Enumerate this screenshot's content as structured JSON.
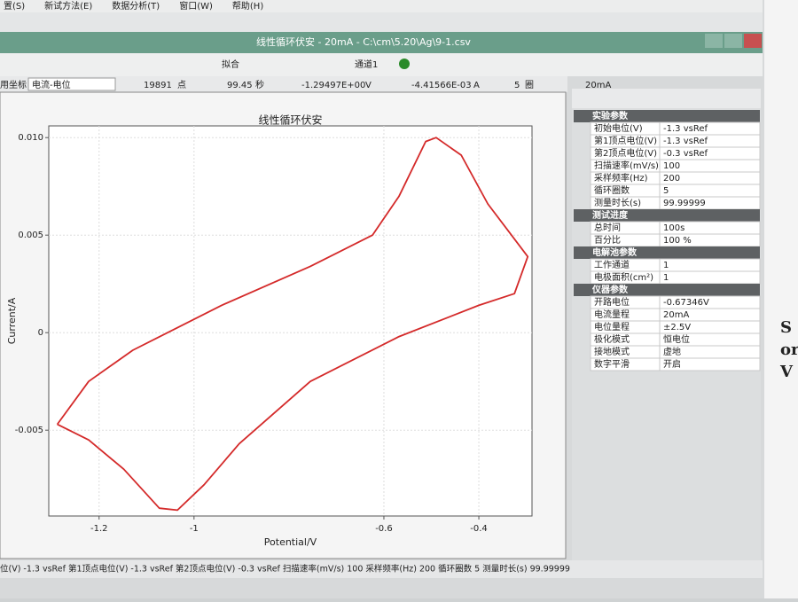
{
  "menu": [
    "置(S)",
    "新试方法(E)",
    "数据分析(T)",
    "窗口(W)",
    "帮助(H)"
  ],
  "window_title": "线性循环伏安 - 20mA - C:\\cm\\5.20\\Ag\\9-1.csv",
  "toolbar": {
    "fit": "拟合",
    "channel": "通道1"
  },
  "info_bar": {
    "coord_label": "用坐标",
    "coord_mode": "电流-电位",
    "points": "19891",
    "points_unit": "点",
    "time": "99.45",
    "time_unit": "秒",
    "potential": "-1.29497E+00",
    "potential_unit": "V",
    "current": "-4.41566E-03",
    "current_unit": "A",
    "cycles": "5",
    "cycles_unit": "圈",
    "range": "20mA"
  },
  "chart_data": {
    "type": "line",
    "title": "线性循环伏安",
    "x_label": "Potential/V",
    "y_label": "Current/A",
    "color": "#d42a2a",
    "grid": true,
    "x": [
      -1.288,
      -1.222,
      -1.129,
      -0.942,
      -0.755,
      -0.624,
      -0.568,
      -0.512,
      -0.49,
      -0.437,
      -0.381,
      -0.297,
      -0.325,
      -0.4,
      -0.568,
      -0.755,
      -0.905,
      -0.979,
      -1.035,
      -1.073,
      -1.148,
      -1.222,
      -1.288
    ],
    "y": [
      -0.0047,
      -0.0025,
      -0.0009,
      0.0014,
      0.0034,
      0.005,
      0.007,
      0.0098,
      0.01,
      0.0091,
      0.0066,
      0.0039,
      0.002,
      0.0014,
      -0.0002,
      -0.0025,
      -0.0057,
      -0.0078,
      -0.0091,
      -0.009,
      -0.007,
      -0.0055,
      -0.0047
    ],
    "xlim": [
      -1.306,
      -0.288
    ],
    "ylim": [
      -0.0094,
      0.0106
    ],
    "xticks": [
      -1.2,
      -1,
      -0.6,
      -0.4
    ],
    "yticks": [
      {
        "value": 0.01,
        "label": "0.010"
      },
      0.005,
      0,
      -0.005
    ]
  },
  "panel": {
    "sections": [
      {
        "title": "实验参数",
        "rows": [
          [
            "初始电位(V)",
            "-1.3 vsRef"
          ],
          [
            "第1顶点电位(V)",
            "-1.3 vsRef"
          ],
          [
            "第2顶点电位(V)",
            "-0.3 vsRef"
          ],
          [
            "扫描速率(mV/s)",
            "100"
          ],
          [
            "采样频率(Hz)",
            "200"
          ],
          [
            "循环圈数",
            "5"
          ],
          [
            "测量时长(s)",
            "99.99999"
          ]
        ]
      },
      {
        "title": "测试进度",
        "rows": [
          [
            "总时间",
            "100s"
          ],
          [
            "百分比",
            "100 %"
          ]
        ]
      },
      {
        "title": "电解池参数",
        "rows": [
          [
            "工作通道",
            "1"
          ],
          [
            "电极面积(cm²)",
            "1"
          ]
        ]
      },
      {
        "title": "仪器参数",
        "rows": [
          [
            "开路电位",
            "-0.67346V"
          ],
          [
            "电流量程",
            "20mA"
          ],
          [
            "电位量程",
            "±2.5V"
          ],
          [
            "极化模式",
            "恒电位"
          ],
          [
            "接地模式",
            "虚地"
          ],
          [
            "数字平滑",
            "开启"
          ]
        ]
      }
    ]
  },
  "status_bar": "位(V) -1.3 vsRef 第1顶点电位(V) -1.3 vsRef 第2顶点电位(V) -0.3 vsRef 扫描速率(mV/s) 100 采样频率(Hz) 200 循环圈数 5 测量时长(s) 99.99999",
  "side_text": [
    "S",
    "or",
    "V"
  ]
}
